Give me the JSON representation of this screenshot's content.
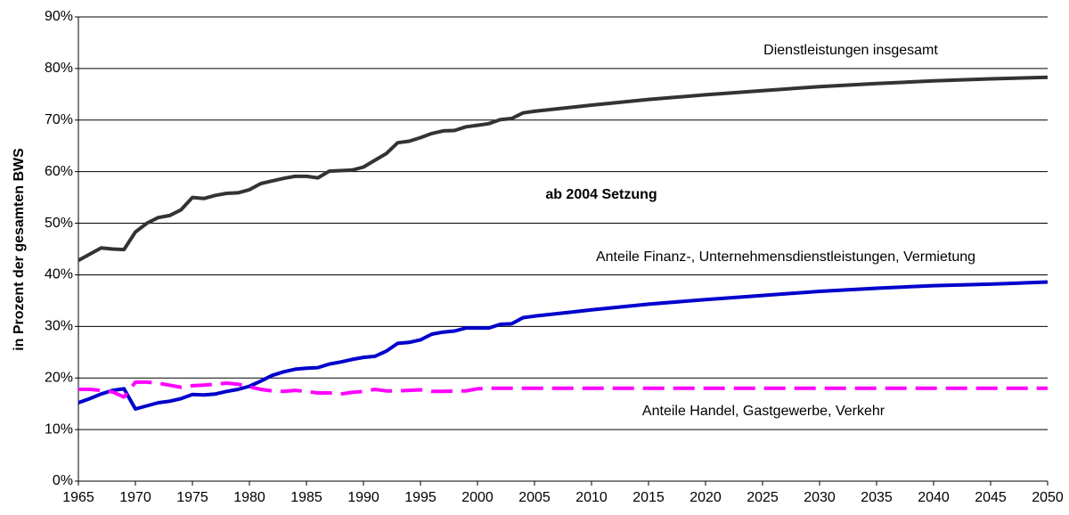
{
  "chart_data": {
    "type": "line",
    "y_label": "in Prozent der gesamten BWS",
    "annotations": [
      "Dienstleistungen insgesamt",
      "ab 2004 Setzung",
      "Anteile Finanz-, Unternehmensdienstleistungen, Vermietung",
      "Anteile Handel, Gastgewerbe, Verkehr"
    ],
    "x": [
      1965,
      1966,
      1967,
      1968,
      1969,
      1970,
      1971,
      1972,
      1973,
      1974,
      1975,
      1976,
      1977,
      1978,
      1979,
      1980,
      1981,
      1982,
      1983,
      1984,
      1985,
      1986,
      1987,
      1988,
      1989,
      1990,
      1991,
      1992,
      1993,
      1994,
      1995,
      1996,
      1997,
      1998,
      1999,
      2000,
      2001,
      2002,
      2003,
      2004,
      2005,
      2010,
      2015,
      2020,
      2025,
      2030,
      2035,
      2040,
      2045,
      2050
    ],
    "series": [
      {
        "color": "#333333",
        "dash": false,
        "values": [
          42.8,
          44,
          45.2,
          45,
          44.9,
          48.3,
          50,
          51.1,
          51.5,
          52.6,
          55,
          54.8,
          55.4,
          55.8,
          55.9,
          56.5,
          57.7,
          58.2,
          58.7,
          59.1,
          59.1,
          58.8,
          60.1,
          60.2,
          60.3,
          60.9,
          62.2,
          63.5,
          65.6,
          65.9,
          66.6,
          67.4,
          67.9,
          68,
          68.7,
          69,
          69.3,
          70.1,
          70.3,
          71.4,
          71.7,
          72.9,
          74,
          74.9,
          75.7,
          76.5,
          77.1,
          77.6,
          78,
          78.3
        ]
      },
      {
        "color": "#0000cc",
        "dash": false,
        "values": [
          15.2,
          16,
          16.9,
          17.6,
          17.9,
          14,
          14.6,
          15.2,
          15.5,
          16,
          16.8,
          16.7,
          16.9,
          17.4,
          17.8,
          18.4,
          19.4,
          20.5,
          21.2,
          21.7,
          21.9,
          22,
          22.7,
          23.1,
          23.6,
          24,
          24.2,
          25.2,
          26.7,
          26.9,
          27.4,
          28.5,
          28.9,
          29.1,
          29.7,
          29.7,
          29.7,
          30.4,
          30.5,
          31.7,
          32,
          33.2,
          34.3,
          35.2,
          36,
          36.8,
          37.4,
          37.9,
          38.2,
          38.6
        ]
      },
      {
        "color": "#ff00ff",
        "dash": true,
        "values": [
          17.8,
          17.8,
          17.6,
          17.3,
          16.3,
          19.2,
          19.2,
          19,
          18.6,
          18.2,
          18.5,
          18.6,
          18.8,
          19,
          18.8,
          18.3,
          17.8,
          17.5,
          17.4,
          17.6,
          17.4,
          17.1,
          17.1,
          16.9,
          17.2,
          17.4,
          17.8,
          17.5,
          17.5,
          17.6,
          17.7,
          17.4,
          17.4,
          17.5,
          17.5,
          17.9,
          18,
          18,
          18,
          18,
          18,
          18,
          18,
          18,
          18,
          18,
          18,
          18,
          18,
          18
        ]
      }
    ],
    "xlim": [
      1965,
      2050
    ],
    "xticks": [
      1965,
      1970,
      1975,
      1980,
      1985,
      1990,
      1995,
      2000,
      2005,
      2010,
      2015,
      2020,
      2025,
      2030,
      2035,
      2040,
      2045,
      2050
    ],
    "ylim": [
      0,
      90
    ],
    "yticks": [
      {
        "value": 0,
        "label": "0%"
      },
      {
        "value": 10,
        "label": "10%"
      },
      {
        "value": 20,
        "label": "20%"
      },
      {
        "value": 30,
        "label": "30%"
      },
      {
        "value": 40,
        "label": "40%"
      },
      {
        "value": 50,
        "label": "50%"
      },
      {
        "value": 60,
        "label": "60%"
      },
      {
        "value": 70,
        "label": "70%"
      },
      {
        "value": 80,
        "label": "80%"
      },
      {
        "value": 90,
        "label": "90%"
      }
    ],
    "grid": true
  }
}
